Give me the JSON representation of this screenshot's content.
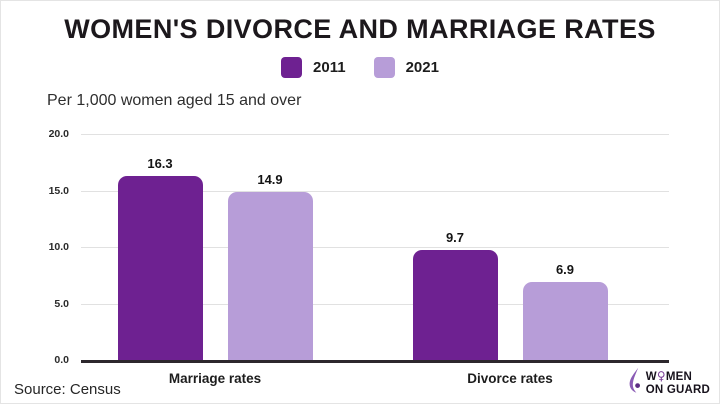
{
  "title": "WOMEN'S DIVORCE AND MARRIAGE RATES",
  "subtitle": "Per 1,000 women aged 15 and over",
  "source": "Source: Census",
  "logo": {
    "line1_pre": "W",
    "symbol": "♀",
    "line1_post": "MEN",
    "line2": "ON GUARD"
  },
  "colors": {
    "series_2011": "#6e2191",
    "series_2021": "#b79dd8",
    "gridline": "#e1e1e1",
    "axis": "#2d282d",
    "text": "#1c181c"
  },
  "chart_data": {
    "type": "bar",
    "title": "WOMEN'S DIVORCE AND MARRIAGE RATES",
    "subtitle": "Per 1,000 women aged 15 and over",
    "categories": [
      "Marriage rates",
      "Divorce rates"
    ],
    "series": [
      {
        "name": "2011",
        "color": "#6e2191",
        "values": [
          16.3,
          9.7
        ]
      },
      {
        "name": "2021",
        "color": "#b79dd8",
        "values": [
          14.9,
          6.9
        ]
      }
    ],
    "xlabel": "",
    "ylabel": "",
    "ylim": [
      0,
      20
    ],
    "yticks": [
      0,
      5,
      10,
      15,
      20
    ],
    "ytick_labels": [
      "0.0",
      "5.0",
      "10.0",
      "15.0",
      "20.0"
    ],
    "grid": true,
    "legend_position": "top",
    "source": "Source: Census"
  }
}
